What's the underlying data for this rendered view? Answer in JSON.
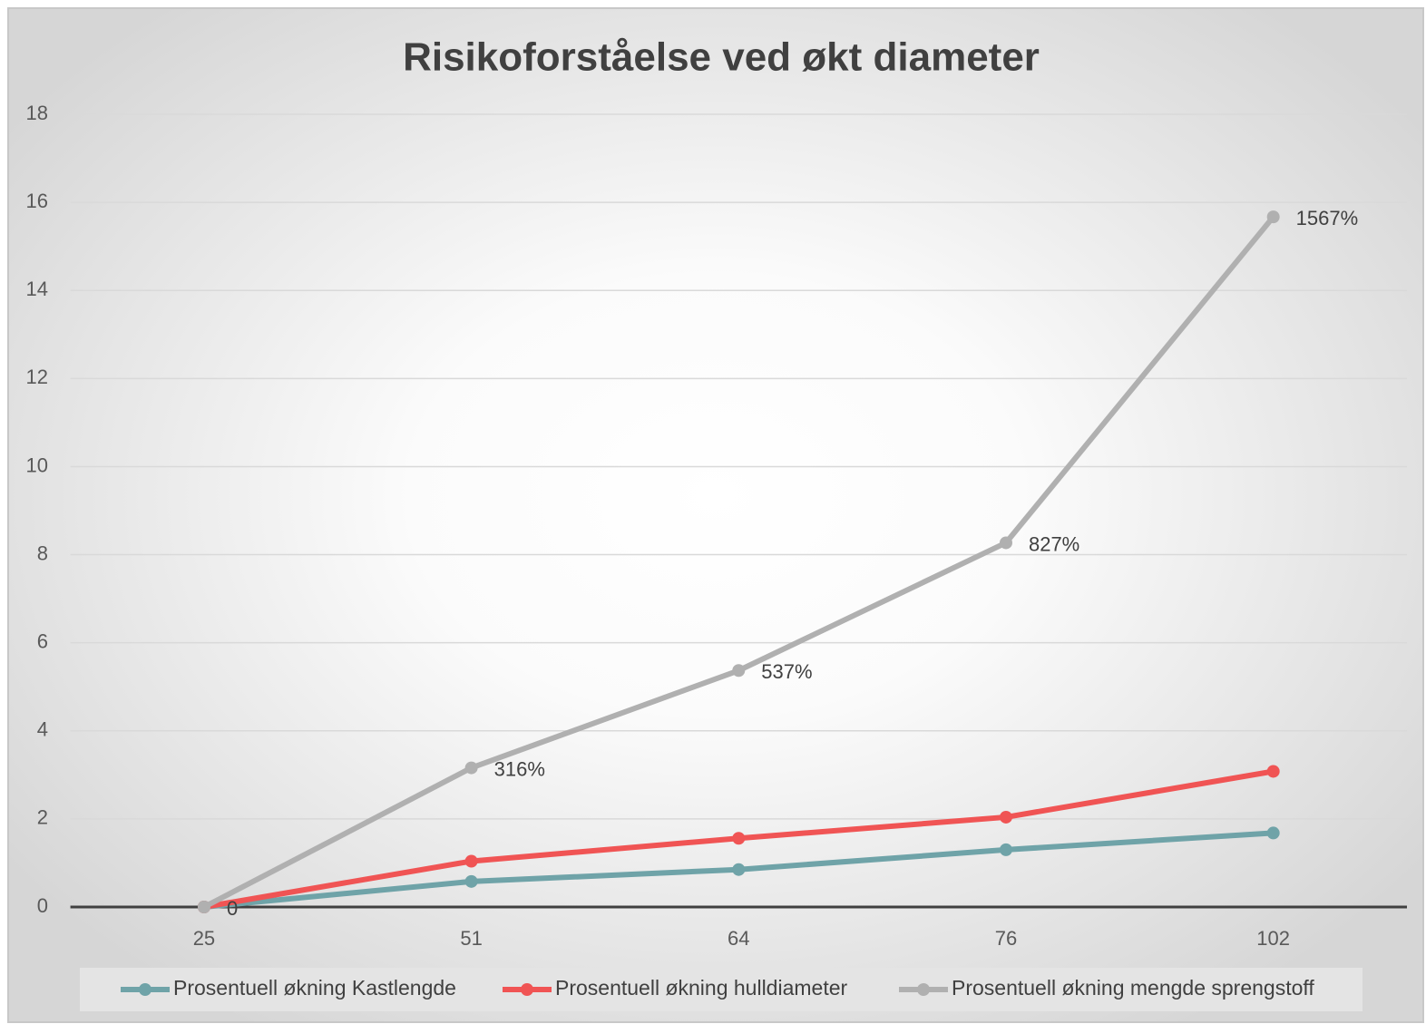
{
  "chart_data": {
    "type": "line",
    "title": "Risikoforståelse ved økt diameter",
    "categories": [
      "25",
      "51",
      "64",
      "76",
      "102"
    ],
    "series": [
      {
        "name": "Prosentuell økning Kastlengde",
        "color": "#6fa3a8",
        "values": [
          0,
          0.58,
          0.85,
          1.3,
          1.68
        ]
      },
      {
        "name": "Prosentuell økning hulldiameter",
        "color": "#f05454",
        "values": [
          0,
          1.04,
          1.56,
          2.04,
          3.08
        ]
      },
      {
        "name": "Prosentuell økning mengde sprengstoff",
        "color": "#b0b0b0",
        "values": [
          0,
          3.16,
          5.37,
          8.27,
          15.67
        ],
        "value_labels": [
          "0",
          "316%",
          "537%",
          "827%",
          "1567%"
        ]
      }
    ],
    "ylim": [
      0,
      18
    ],
    "yticks": [
      0,
      2,
      4,
      6,
      8,
      10,
      12,
      14,
      16,
      18
    ],
    "grid": true,
    "legend": "bottom"
  }
}
